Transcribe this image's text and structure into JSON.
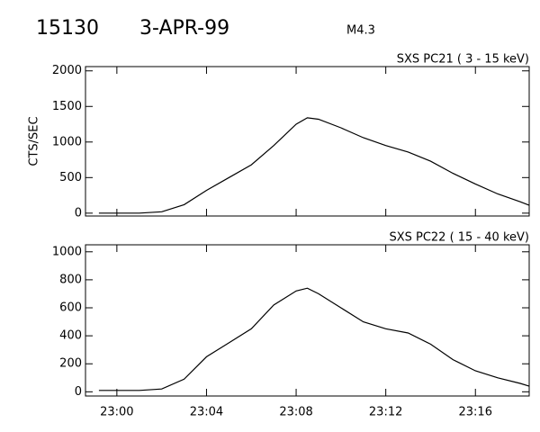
{
  "header": {
    "id": "15130",
    "date": "3-APR-99",
    "class": "M4.3"
  },
  "chart_data": [
    {
      "type": "line",
      "title": "SXS PC21  (  3 - 15 keV)",
      "ylabel": "CTS/SEC",
      "x": [
        -0.8,
        0,
        1,
        2,
        3,
        4,
        5,
        6,
        7,
        8,
        8.5,
        9,
        10,
        11,
        12,
        13,
        14,
        15,
        16,
        17,
        18,
        18.4
      ],
      "series": [
        {
          "color": "#000000",
          "values": [
            0,
            0,
            0,
            20,
            120,
            320,
            500,
            680,
            950,
            1250,
            1340,
            1320,
            1200,
            1060,
            950,
            860,
            730,
            560,
            410,
            270,
            160,
            110
          ]
        }
      ],
      "xlim": [
        -1.4,
        18.4
      ],
      "xticks": [
        {
          "value": 0,
          "label": "23:00"
        },
        {
          "value": 4,
          "label": "23:04"
        },
        {
          "value": 8,
          "label": "23:08"
        },
        {
          "value": 12,
          "label": "23:12"
        },
        {
          "value": 16,
          "label": "23:16"
        }
      ],
      "ylim": [
        -40,
        2060
      ],
      "yticks": [
        0,
        500,
        1000,
        1500,
        2000
      ]
    },
    {
      "type": "line",
      "title": "SXS PC22  ( 15 - 40 keV)",
      "x": [
        -0.8,
        0,
        1,
        2,
        3,
        4,
        5,
        6,
        7,
        8,
        8.5,
        9,
        10,
        11,
        12,
        13,
        14,
        15,
        16,
        17,
        18,
        18.4
      ],
      "series": [
        {
          "color": "#000000",
          "values": [
            10,
            10,
            10,
            20,
            90,
            250,
            350,
            450,
            620,
            720,
            740,
            700,
            600,
            500,
            450,
            420,
            340,
            230,
            150,
            100,
            60,
            40
          ]
        }
      ],
      "xlim": [
        -1.4,
        18.4
      ],
      "xticks": [
        {
          "value": 0,
          "label": "23:00"
        },
        {
          "value": 4,
          "label": "23:04"
        },
        {
          "value": 8,
          "label": "23:08"
        },
        {
          "value": 12,
          "label": "23:12"
        },
        {
          "value": 16,
          "label": "23:16"
        }
      ],
      "ylim": [
        -30,
        1050
      ],
      "yticks": [
        0,
        200,
        400,
        600,
        800,
        1000
      ]
    }
  ]
}
